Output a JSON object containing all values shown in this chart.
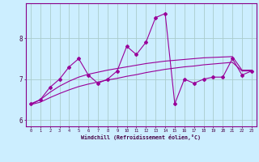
{
  "xlabel": "Windchill (Refroidissement éolien,°C)",
  "background_color": "#cceeff",
  "grid_color": "#aacccc",
  "line_color": "#990099",
  "x_hours": [
    0,
    1,
    2,
    3,
    4,
    5,
    6,
    7,
    8,
    9,
    10,
    11,
    12,
    13,
    14,
    15,
    16,
    17,
    18,
    19,
    20,
    21,
    22,
    23
  ],
  "y_windchill": [
    6.4,
    6.5,
    6.8,
    7.0,
    7.3,
    7.5,
    7.1,
    6.9,
    7.0,
    7.2,
    7.8,
    7.6,
    7.9,
    8.5,
    8.6,
    6.4,
    7.0,
    6.9,
    7.0,
    7.05,
    7.05,
    7.5,
    7.1,
    7.2
  ],
  "y_smooth1": [
    6.38,
    6.44,
    6.55,
    6.65,
    6.74,
    6.82,
    6.88,
    6.93,
    6.98,
    7.02,
    7.07,
    7.11,
    7.16,
    7.2,
    7.24,
    7.27,
    7.3,
    7.32,
    7.35,
    7.37,
    7.39,
    7.41,
    7.2,
    7.2
  ],
  "y_smooth2": [
    6.38,
    6.5,
    6.68,
    6.83,
    6.95,
    7.05,
    7.12,
    7.17,
    7.22,
    7.26,
    7.3,
    7.34,
    7.38,
    7.41,
    7.44,
    7.46,
    7.48,
    7.5,
    7.52,
    7.53,
    7.54,
    7.55,
    7.22,
    7.22
  ],
  "ylim": [
    5.85,
    8.85
  ],
  "yticks": [
    6,
    7,
    8
  ],
  "xticks": [
    0,
    1,
    2,
    3,
    4,
    5,
    6,
    7,
    8,
    9,
    10,
    11,
    12,
    13,
    14,
    15,
    16,
    17,
    18,
    19,
    20,
    21,
    22,
    23
  ]
}
